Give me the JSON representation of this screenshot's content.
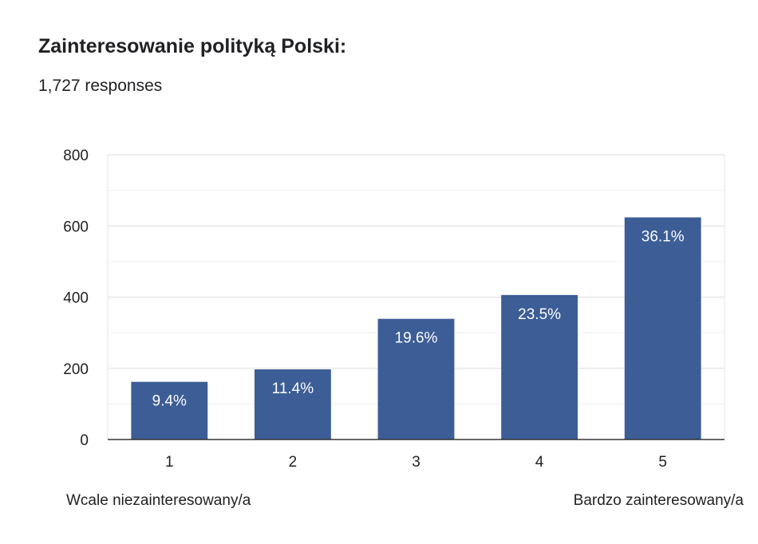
{
  "header": {
    "title": "Zainteresowanie polityką Polski:",
    "subtitle": "1,727 responses"
  },
  "colors": {
    "bar": "#3c5d96",
    "grid": "#e6e6e6",
    "axis": "#333333"
  },
  "chart_data": {
    "type": "bar",
    "categories": [
      "1",
      "2",
      "3",
      "4",
      "5"
    ],
    "values": [
      162,
      197,
      339,
      406,
      624
    ],
    "data_labels": [
      "9.4%",
      "11.4%",
      "19.6%",
      "23.5%",
      "36.1%"
    ],
    "ylim": [
      0,
      800
    ],
    "yticks": [
      0,
      200,
      400,
      600,
      800
    ],
    "grid": true,
    "scale_labels": {
      "low": "Wcale niezainteresowany/a",
      "high": "Bardzo zainteresowany/a"
    }
  }
}
